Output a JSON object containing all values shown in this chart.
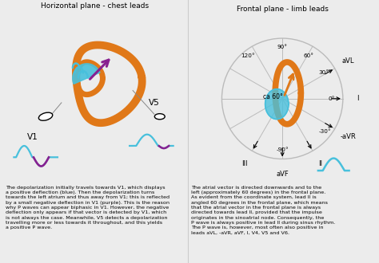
{
  "title_left": "Horizontal plane - chest leads",
  "title_right": "Frontal plane - limb leads",
  "bg_color": "#ececec",
  "orange_color": "#E07818",
  "blue_color": "#48C0DC",
  "purple_color": "#882090",
  "text_left": "The depolarization initially travels towards V1, which displays\na positive deflection (blue). Then the depolarization turns\ntowards the left atrium and thus away from V1; this is reflected\nby a small negative deflection in V1 (purple). This is the reason\nwhy P waves can appear biphasic in V1. However, the negative\ndeflection only appears if that vector is detected by V1, which\nis not always the case. Meanwhile, V5 detects a depolarization\ntravelling more or less towards it throughout, and this yields\na positive P wave.",
  "text_right": "The atrial vector is directed downwards and to the\nleft (approximately 60 degrees) in the frontal plane.\nAs evident from the coordinate system, lead II is\nangled 60 degrees in the frontal plane, which means\nthat the atrial vector in the frontal plane is always\ndirected towards lead II, provided that the impulse\noriginates in the sinoatrial node. Consequently, the\nP wave is always positive in lead II during sinus rhythm.\nThe P wave is, however, most often also positive in\nleads aVL, -aVR, aVF, I, V4, V5 and V6.",
  "lead_angle_map": {
    "aVL": -30,
    "I": 0,
    "-aVR": 30,
    "II": 60,
    "aVF": 90,
    "III": 120
  }
}
